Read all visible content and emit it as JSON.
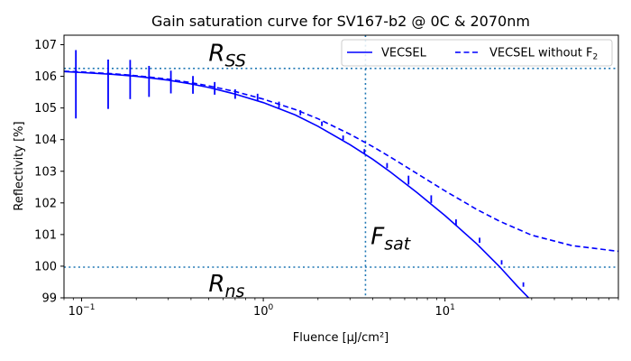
{
  "chart_data": {
    "type": "line",
    "title": "Gain saturation curve for SV167-b2 @ 0C & 2070nm",
    "xlabel": "Fluence [μJ/cm²]",
    "ylabel": "Reflectivity [%]",
    "xscale": "log",
    "xlim": [
      0.08,
      90
    ],
    "ylim": [
      99,
      107.3
    ],
    "grid": false,
    "legend_position": "top-right",
    "x_ticks": [
      {
        "value": 0.1,
        "base": "10",
        "exp": "−1"
      },
      {
        "value": 1,
        "base": "10",
        "exp": "0"
      },
      {
        "value": 10,
        "base": "10",
        "exp": "1"
      }
    ],
    "y_ticks": [
      {
        "value": 99,
        "label": "99"
      },
      {
        "value": 100,
        "label": "100"
      },
      {
        "value": 101,
        "label": "101"
      },
      {
        "value": 102,
        "label": "102"
      },
      {
        "value": 103,
        "label": "103"
      },
      {
        "value": 104,
        "label": "104"
      },
      {
        "value": 105,
        "label": "105"
      },
      {
        "value": 106,
        "label": "106"
      },
      {
        "value": 107,
        "label": "107"
      }
    ],
    "series": [
      {
        "name": "VECSEL",
        "style": "solid",
        "color": "#0000ff",
        "x": [
          0.08,
          0.1,
          0.15,
          0.2,
          0.3,
          0.4,
          0.5,
          0.7,
          1.0,
          1.5,
          2.0,
          3.0,
          4.0,
          5.0,
          7.0,
          10,
          15,
          20,
          25,
          30
        ],
        "y": [
          106.15,
          106.12,
          106.06,
          106.0,
          105.88,
          105.76,
          105.65,
          105.44,
          105.17,
          104.78,
          104.42,
          103.84,
          103.38,
          102.98,
          102.33,
          101.6,
          100.7,
          99.98,
          99.37,
          98.9
        ]
      },
      {
        "name": "VECSEL without F",
        "name_sub": "2",
        "style": "dashed",
        "color": "#0000ff",
        "x": [
          0.08,
          0.1,
          0.15,
          0.2,
          0.3,
          0.4,
          0.5,
          0.7,
          1.0,
          1.5,
          2.0,
          3.0,
          4.0,
          5.0,
          7.0,
          10,
          15,
          20,
          30,
          50,
          90
        ],
        "y": [
          106.16,
          106.14,
          106.08,
          106.02,
          105.91,
          105.8,
          105.7,
          105.52,
          105.28,
          104.95,
          104.66,
          104.17,
          103.78,
          103.45,
          102.93,
          102.38,
          101.79,
          101.42,
          100.98,
          100.65,
          100.47
        ]
      }
    ],
    "error_bars": {
      "color": "#0000ff",
      "points": [
        {
          "x": 0.093,
          "y": 105.75,
          "err": 1.08
        },
        {
          "x": 0.14,
          "y": 105.75,
          "err": 0.78
        },
        {
          "x": 0.185,
          "y": 105.9,
          "err": 0.62
        },
        {
          "x": 0.235,
          "y": 105.84,
          "err": 0.49
        },
        {
          "x": 0.31,
          "y": 105.82,
          "err": 0.36
        },
        {
          "x": 0.41,
          "y": 105.73,
          "err": 0.28
        },
        {
          "x": 0.54,
          "y": 105.62,
          "err": 0.2
        },
        {
          "x": 0.7,
          "y": 105.44,
          "err": 0.15
        },
        {
          "x": 0.93,
          "y": 105.33,
          "err": 0.12
        },
        {
          "x": 1.22,
          "y": 105.1,
          "err": 0.1
        },
        {
          "x": 1.6,
          "y": 104.85,
          "err": 0.08
        },
        {
          "x": 2.1,
          "y": 104.5,
          "err": 0.07
        },
        {
          "x": 2.75,
          "y": 104.06,
          "err": 0.07
        },
        {
          "x": 3.6,
          "y": 103.62,
          "err": 0.08
        },
        {
          "x": 4.8,
          "y": 103.18,
          "err": 0.08
        },
        {
          "x": 6.3,
          "y": 102.72,
          "err": 0.14
        },
        {
          "x": 8.4,
          "y": 102.12,
          "err": 0.12
        },
        {
          "x": 11.5,
          "y": 101.38,
          "err": 0.1
        },
        {
          "x": 15.5,
          "y": 100.82,
          "err": 0.08
        },
        {
          "x": 20.5,
          "y": 100.12,
          "err": 0.07
        },
        {
          "x": 27,
          "y": 99.42,
          "err": 0.07
        }
      ]
    },
    "reference_lines": [
      {
        "orientation": "horizontal",
        "value": 106.25,
        "style": "dotted",
        "color": "#1f77b4"
      },
      {
        "orientation": "horizontal",
        "value": 99.97,
        "style": "dotted",
        "color": "#1f77b4"
      },
      {
        "orientation": "vertical",
        "value": 3.65,
        "style": "dotted",
        "color": "#1f77b4"
      }
    ],
    "annotations": [
      {
        "main": "R",
        "sub": "SS",
        "x": 0.5,
        "y": 106.48
      },
      {
        "main": "R",
        "sub": "ns",
        "x": 0.5,
        "y": 99.2
      },
      {
        "main": "F",
        "sub": "sat",
        "x": 3.9,
        "y": 100.7
      }
    ]
  }
}
